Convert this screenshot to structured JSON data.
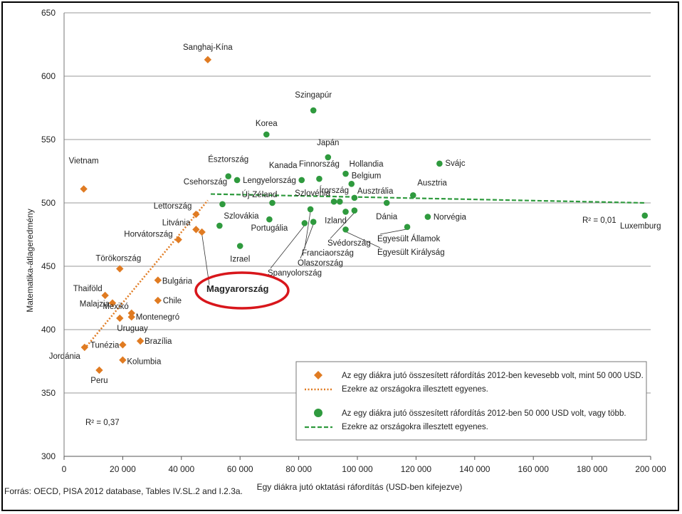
{
  "chart_data": {
    "type": "scatter",
    "xlabel": "Egy diákra jutó oktatási ráfordítás (USD-ben kifejezve)",
    "ylabel": "Matematika-átlageredmény",
    "xlim": [
      0,
      200000
    ],
    "ylim": [
      300,
      650
    ],
    "x_ticks": [
      0,
      20000,
      40000,
      60000,
      80000,
      100000,
      120000,
      140000,
      160000,
      180000,
      200000
    ],
    "x_tick_labels": [
      "0",
      "20 000",
      "40 000",
      "60 000",
      "80 000",
      "100 000",
      "120 000",
      "140 000",
      "160 000",
      "180 000",
      "200 000"
    ],
    "y_ticks": [
      300,
      350,
      400,
      450,
      500,
      550,
      600,
      650
    ],
    "y_tick_labels": [
      "300",
      "350",
      "400",
      "450",
      "500",
      "550",
      "600",
      "650"
    ],
    "grid": "horizontal",
    "source": "Forrás: OECD, PISA 2012 database, Tables IV.SL.2 and I.2.3a.",
    "highlight": "Magyarország",
    "series": [
      {
        "name": "Az egy diákra jutó összesített ráfordítás 2012-ben kevesebb volt, mint 50 000 USD.",
        "marker": "diamond",
        "color": "#e07b22",
        "points": [
          {
            "label": "Vietnam",
            "x": 6700,
            "y": 511
          },
          {
            "label": "Sanghaj-Kína",
            "x": 49000,
            "y": 613
          },
          {
            "label": "Lettország",
            "x": 45000,
            "y": 491
          },
          {
            "label": "Litvánia",
            "x": 45000,
            "y": 479
          },
          {
            "label": "Magyarország",
            "x": 47000,
            "y": 477
          },
          {
            "label": "Horvátország",
            "x": 39000,
            "y": 471
          },
          {
            "label": "Törökország",
            "x": 19000,
            "y": 448
          },
          {
            "label": "Bulgária",
            "x": 32000,
            "y": 439
          },
          {
            "label": "Thaiföld",
            "x": 14000,
            "y": 427
          },
          {
            "label": "Malajzia",
            "x": 16500,
            "y": 421
          },
          {
            "label": "Chile",
            "x": 32000,
            "y": 423
          },
          {
            "label": "Mexikó",
            "x": 23000,
            "y": 413
          },
          {
            "label": "Montenegró",
            "x": 23000,
            "y": 410
          },
          {
            "label": "Uruguay",
            "x": 19000,
            "y": 409
          },
          {
            "label": "Brazília",
            "x": 26000,
            "y": 391
          },
          {
            "label": "Tunézia",
            "x": 20000,
            "y": 388
          },
          {
            "label": "Jordánia",
            "x": 7000,
            "y": 386
          },
          {
            "label": "Kolumbia",
            "x": 20000,
            "y": 376
          },
          {
            "label": "Peru",
            "x": 12000,
            "y": 368
          }
        ],
        "fit": {
          "name": "Ezekre az országokra illesztett egyenes.",
          "x": [
            7000,
            49000
          ],
          "y": [
            385,
            502
          ],
          "r2": "R² = 0,37"
        }
      },
      {
        "name": "Az egy diákra jutó összesített ráfordítás 2012-ben 50 000 USD volt, vagy több.",
        "marker": "circle",
        "color": "#2f9a3e",
        "points": [
          {
            "label": "Szingapúr",
            "x": 85000,
            "y": 573
          },
          {
            "label": "Korea",
            "x": 69000,
            "y": 554
          },
          {
            "label": "Japán",
            "x": 90000,
            "y": 536
          },
          {
            "label": "Svájc",
            "x": 128000,
            "y": 531
          },
          {
            "label": "Hollandia",
            "x": 96000,
            "y": 523
          },
          {
            "label": "Észtország",
            "x": 56000,
            "y": 521
          },
          {
            "label": "Finnország",
            "x": 87000,
            "y": 519
          },
          {
            "label": "Kanada",
            "x": 81000,
            "y": 518
          },
          {
            "label": "Lengyelország",
            "x": 59000,
            "y": 518
          },
          {
            "label": "Belgium",
            "x": 98000,
            "y": 515
          },
          {
            "label": "Ausztria",
            "x": 119000,
            "y": 506
          },
          {
            "label": "Ausztrália",
            "x": 99000,
            "y": 504
          },
          {
            "label": "Írország",
            "x": 94000,
            "y": 501
          },
          {
            "label": "Szlovénia",
            "x": 92000,
            "y": 501
          },
          {
            "label": "Dánia",
            "x": 110000,
            "y": 500
          },
          {
            "label": "Új-Zéland",
            "x": 71000,
            "y": 500
          },
          {
            "label": "Csehország",
            "x": 54000,
            "y": 499
          },
          {
            "label": "Franciaország",
            "x": 84000,
            "y": 495
          },
          {
            "label": "Svédország",
            "x": 99000,
            "y": 494
          },
          {
            "label": "Izland",
            "x": 96000,
            "y": 493
          },
          {
            "label": "Norvégia",
            "x": 124000,
            "y": 489
          },
          {
            "label": "Luxemburg",
            "x": 198000,
            "y": 490
          },
          {
            "label": "Portugália",
            "x": 70000,
            "y": 487
          },
          {
            "label": "Olaszország",
            "x": 85000,
            "y": 485
          },
          {
            "label": "Spanyolország",
            "x": 82000,
            "y": 484
          },
          {
            "label": "Szlovákia",
            "x": 53000,
            "y": 482
          },
          {
            "label": "Egyesült Államok",
            "x": 117000,
            "y": 481
          },
          {
            "label": "Egyesült Királyság",
            "x": 96000,
            "y": 479
          },
          {
            "label": "Izrael",
            "x": 60000,
            "y": 466
          }
        ],
        "fit": {
          "name": "Ezekre az országokra illesztett egyenes.",
          "x": [
            50000,
            198000
          ],
          "y": [
            507,
            500
          ],
          "r2": "R² = 0,01"
        }
      }
    ]
  }
}
